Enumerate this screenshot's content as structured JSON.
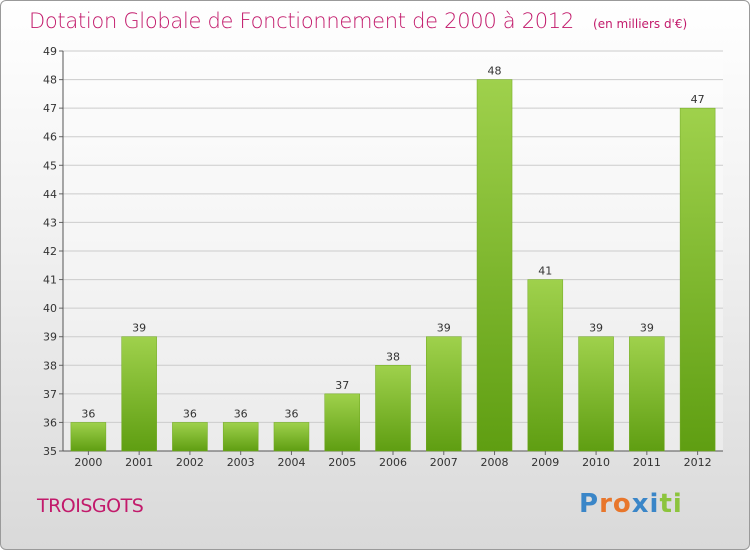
{
  "page": {
    "title": "Dotation Globale de Fonctionnement de 2000 à 2012",
    "unit_note": "(en milliers d'€)",
    "commune": "TROISGOTS",
    "logo_text": "Proxiti"
  },
  "colors": {
    "title": "#c21a6b",
    "bar_light": "#9fd14c",
    "bar_dark": "#5f9e12",
    "grid": "#cccccc",
    "logo_letters": [
      "#3a86c8",
      "#e8762b",
      "#e8762b",
      "#3a86c8",
      "#3a86c8",
      "#8cc43c",
      "#8cc43c"
    ]
  },
  "chart_data": {
    "type": "bar",
    "title": "Dotation Globale de Fonctionnement de 2000 à 2012",
    "subtitle": "(en milliers d'€)",
    "categories": [
      "2000",
      "2001",
      "2002",
      "2003",
      "2004",
      "2005",
      "2006",
      "2007",
      "2008",
      "2009",
      "2010",
      "2011",
      "2012"
    ],
    "values": [
      36,
      39,
      36,
      36,
      36,
      37,
      38,
      39,
      48,
      41,
      39,
      39,
      47
    ],
    "ylim": [
      35,
      49
    ],
    "yticks": [
      35,
      36,
      37,
      38,
      39,
      40,
      41,
      42,
      43,
      44,
      45,
      46,
      47,
      48,
      49
    ],
    "grid": true,
    "xlabel": "",
    "ylabel": ""
  }
}
